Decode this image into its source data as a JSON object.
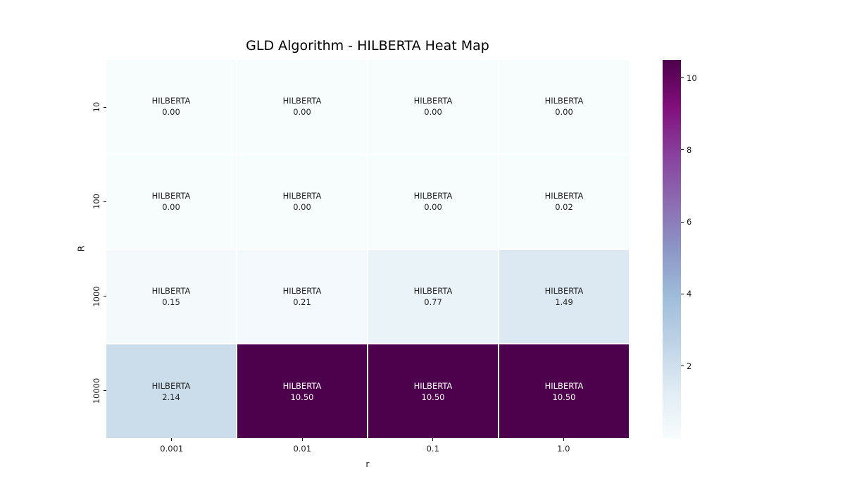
{
  "title": "GLD Algorithm - HILBERTA Heat Map",
  "chart_data": {
    "type": "heatmap",
    "title": "GLD Algorithm - HILBERTA Heat Map",
    "xlabel": "r",
    "ylabel": "R",
    "x_categories": [
      "0.001",
      "0.01",
      "0.1",
      "1.0"
    ],
    "y_categories": [
      "10",
      "100",
      "1000",
      "10000"
    ],
    "cell_label": "HILBERTA",
    "values": [
      [
        0.0,
        0.0,
        0.0,
        0.0
      ],
      [
        0.0,
        0.0,
        0.0,
        0.02
      ],
      [
        0.15,
        0.21,
        0.77,
        1.49
      ],
      [
        2.14,
        10.5,
        10.5,
        10.5
      ]
    ],
    "value_decimals": 2,
    "vmin": 0,
    "vmax": 10.5,
    "colormap": "BuPu",
    "colormap_stops": [
      [
        0.0,
        "#f7fcfd"
      ],
      [
        0.125,
        "#e0ecf4"
      ],
      [
        0.25,
        "#bfd3e6"
      ],
      [
        0.375,
        "#9ebcda"
      ],
      [
        0.5,
        "#8c96c6"
      ],
      [
        0.625,
        "#8c6bb1"
      ],
      [
        0.75,
        "#88419d"
      ],
      [
        0.875,
        "#810f7c"
      ],
      [
        1.0,
        "#4d004b"
      ]
    ],
    "colorbar_ticks": [
      "2",
      "4",
      "6",
      "8",
      "10"
    ],
    "annotation_dark_color": "#262626",
    "annotation_light_color": "#ffffff",
    "grid_line_color": "#ffffff",
    "legend_position": "right-colorbar",
    "grid": false
  }
}
